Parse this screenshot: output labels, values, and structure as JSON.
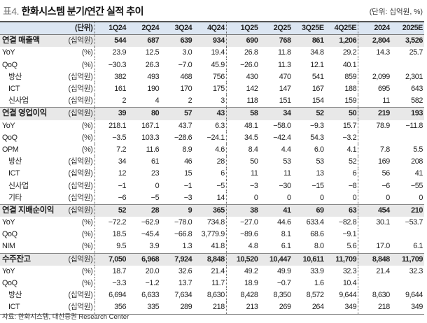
{
  "title": {
    "prefix": "표4.",
    "text": "한화시스템 분기/연간 실적 추이"
  },
  "unit_note": "(단위: 십억원, %)",
  "header": {
    "unit": "(단위)",
    "columns": [
      "1Q24",
      "2Q24",
      "3Q24",
      "4Q24",
      "1Q25",
      "2Q25",
      "3Q25E",
      "4Q25E",
      "2024",
      "2025E"
    ]
  },
  "rows": [
    {
      "label": "연결 매출액",
      "unit": "(십억원)",
      "bold": true,
      "sub": false,
      "values": [
        "544",
        "687",
        "639",
        "934",
        "690",
        "768",
        "861",
        "1,206",
        "2,804",
        "3,526"
      ]
    },
    {
      "label": "YoY",
      "unit": "(%)",
      "bold": false,
      "sub": false,
      "values": [
        "23.9",
        "12.5",
        "3.0",
        "19.4",
        "26.8",
        "11.8",
        "34.8",
        "29.2",
        "14.3",
        "25.7"
      ]
    },
    {
      "label": "QoQ",
      "unit": "(%)",
      "bold": false,
      "sub": false,
      "values": [
        "−30.3",
        "26.3",
        "−7.0",
        "45.9",
        "−26.0",
        "11.3",
        "12.1",
        "40.1",
        "",
        ""
      ]
    },
    {
      "label": "방산",
      "unit": "(십억원)",
      "bold": false,
      "sub": true,
      "values": [
        "382",
        "493",
        "468",
        "756",
        "430",
        "470",
        "541",
        "859",
        "2,099",
        "2,301"
      ]
    },
    {
      "label": "ICT",
      "unit": "(십억원)",
      "bold": false,
      "sub": true,
      "values": [
        "161",
        "190",
        "170",
        "175",
        "142",
        "147",
        "167",
        "188",
        "695",
        "643"
      ]
    },
    {
      "label": "신사업",
      "unit": "(십억원)",
      "bold": false,
      "sub": true,
      "values": [
        "2",
        "4",
        "2",
        "3",
        "118",
        "151",
        "154",
        "159",
        "11",
        "582"
      ]
    },
    {
      "label": "연결 영업이익",
      "unit": "(십억원)",
      "bold": true,
      "sub": false,
      "values": [
        "39",
        "80",
        "57",
        "43",
        "58",
        "34",
        "52",
        "50",
        "219",
        "193"
      ]
    },
    {
      "label": "YoY",
      "unit": "(%)",
      "bold": false,
      "sub": false,
      "values": [
        "218.1",
        "167.1",
        "43.7",
        "6.3",
        "48.1",
        "−58.0",
        "−9.3",
        "15.7",
        "78.9",
        "−11.8"
      ]
    },
    {
      "label": "QoQ",
      "unit": "(%)",
      "bold": false,
      "sub": false,
      "values": [
        "−3.5",
        "103.3",
        "−28.6",
        "−24.1",
        "34.5",
        "−42.4",
        "54.3",
        "−3.2",
        "",
        ""
      ]
    },
    {
      "label": "OPM",
      "unit": "(%)",
      "bold": false,
      "sub": false,
      "values": [
        "7.2",
        "11.6",
        "8.9",
        "4.6",
        "8.4",
        "4.4",
        "6.0",
        "4.1",
        "7.8",
        "5.5"
      ]
    },
    {
      "label": "방산",
      "unit": "(십억원)",
      "bold": false,
      "sub": true,
      "values": [
        "34",
        "61",
        "46",
        "28",
        "50",
        "53",
        "53",
        "52",
        "169",
        "208"
      ]
    },
    {
      "label": "ICT",
      "unit": "(십억원)",
      "bold": false,
      "sub": true,
      "values": [
        "12",
        "23",
        "15",
        "6",
        "11",
        "11",
        "13",
        "6",
        "56",
        "41"
      ]
    },
    {
      "label": "신사업",
      "unit": "(십억원)",
      "bold": false,
      "sub": true,
      "values": [
        "−1",
        "0",
        "−1",
        "−5",
        "−3",
        "−30",
        "−15",
        "−8",
        "−6",
        "−55"
      ]
    },
    {
      "label": "기타",
      "unit": "(십억원)",
      "bold": false,
      "sub": true,
      "values": [
        "−6",
        "−5",
        "−3",
        "14",
        "0",
        "0",
        "0",
        "0",
        "0",
        "0"
      ]
    },
    {
      "label": "연결 지배순이익",
      "unit": "(십억원)",
      "bold": true,
      "sub": false,
      "values": [
        "52",
        "28",
        "9",
        "365",
        "38",
        "41",
        "69",
        "63",
        "454",
        "210"
      ]
    },
    {
      "label": "YoY",
      "unit": "(%)",
      "bold": false,
      "sub": false,
      "values": [
        "−72.2",
        "−62.9",
        "−78.0",
        "734.8",
        "−27.0",
        "44.6",
        "633.4",
        "−82.8",
        "30.1",
        "−53.7"
      ]
    },
    {
      "label": "QoQ",
      "unit": "(%)",
      "bold": false,
      "sub": false,
      "values": [
        "18.5",
        "−45.4",
        "−66.8",
        "3,779.9",
        "−89.6",
        "8.1",
        "68.6",
        "−9.1",
        "",
        ""
      ]
    },
    {
      "label": "NIM",
      "unit": "(%)",
      "bold": false,
      "sub": false,
      "values": [
        "9.5",
        "3.9",
        "1.3",
        "41.8",
        "4.8",
        "6.1",
        "8.0",
        "5.6",
        "17.0",
        "6.1"
      ]
    },
    {
      "label": "수주잔고",
      "unit": "(십억원)",
      "bold": true,
      "sub": false,
      "values": [
        "7,050",
        "6,968",
        "7,924",
        "8,848",
        "10,520",
        "10,447",
        "10,611",
        "11,709",
        "8,848",
        "11,709"
      ]
    },
    {
      "label": "YoY",
      "unit": "(%)",
      "bold": false,
      "sub": false,
      "values": [
        "18.7",
        "20.0",
        "32.6",
        "21.4",
        "49.2",
        "49.9",
        "33.9",
        "32.3",
        "21.4",
        "32.3"
      ]
    },
    {
      "label": "QoQ",
      "unit": "(%)",
      "bold": false,
      "sub": false,
      "values": [
        "−3.3",
        "−1.2",
        "13.7",
        "11.7",
        "18.9",
        "−0.7",
        "1.6",
        "10.4",
        "",
        ""
      ]
    },
    {
      "label": "방산",
      "unit": "(십억원)",
      "bold": false,
      "sub": true,
      "values": [
        "6,694",
        "6,633",
        "7,634",
        "8,630",
        "8,428",
        "8,350",
        "8,572",
        "9,644",
        "8,630",
        "9,644"
      ]
    },
    {
      "label": "ICT",
      "unit": "(십억원)",
      "bold": false,
      "sub": true,
      "values": [
        "356",
        "335",
        "289",
        "218",
        "213",
        "269",
        "264",
        "349",
        "218",
        "349"
      ]
    }
  ],
  "source": "자료: 한화시스템, 대신증권 Research Center"
}
